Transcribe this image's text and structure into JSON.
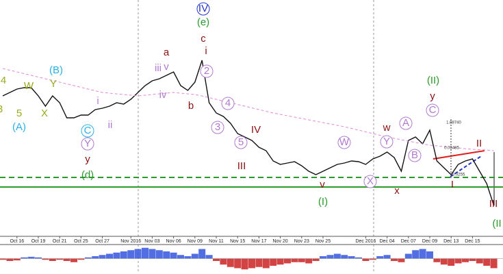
{
  "chart_data": [
    {
      "type": "line",
      "categories": [
        null,
        null,
        "Oct 16",
        null,
        null,
        "Oct 19",
        null,
        null,
        "Oct 21",
        null,
        null,
        "Oct 25",
        null,
        null,
        "Oct 27",
        null,
        null,
        null,
        "Nov 2016",
        null,
        null,
        "Nov 03",
        null,
        null,
        "Nov 06",
        null,
        null,
        "Nov 09",
        null,
        null,
        "Nov 11",
        null,
        null,
        "Nov 15",
        null,
        null,
        "Nov 17",
        null,
        null,
        "Nov 20",
        null,
        null,
        "Nov 23",
        null,
        null,
        "Nov 25",
        null,
        null,
        null,
        null,
        null,
        "Dec 2016",
        null,
        null,
        "Dec 04",
        null,
        null,
        "Dec 07",
        null,
        null,
        "Dec 09",
        null,
        null,
        "Dec 13",
        null,
        null,
        "Dec 15",
        null,
        null,
        null
      ],
      "series": [
        {
          "color": "#111111",
          "dashed": false,
          "values": [
            1.104,
            1.106,
            1.108,
            1.1088,
            1.1088,
            1.104,
            1.098,
            1.104,
            1.1,
            1.0912,
            1.0912,
            1.0928,
            1.0928,
            1.096,
            1.0968,
            1.098,
            1.1,
            1.0992,
            1.102,
            1.106,
            1.11,
            1.1128,
            1.114,
            1.116,
            1.118,
            1.11,
            1.1072,
            1.112,
            1.1248,
            1.1,
            1.094,
            1.092,
            1.088,
            1.082,
            1.08,
            1.078,
            1.074,
            1.072,
            1.066,
            1.064,
            1.0648,
            1.0656,
            1.0632,
            1.06,
            1.058,
            1.06,
            1.062,
            1.064,
            1.0648,
            1.066,
            1.0656,
            1.064,
            1.0672,
            1.0688,
            1.0712,
            1.068,
            1.06,
            1.078,
            1.08,
            1.076,
            1.084,
            1.066,
            1.062,
            1.058,
            1.064,
            1.066,
            1.0672,
            1.06,
            1.0528,
            1.04
          ]
        },
        {
          "color": "#e08ad8",
          "dashed": true,
          "values": [
            1.12,
            1.119,
            1.118,
            1.117,
            1.116,
            1.115,
            1.114,
            1.113,
            1.112,
            1.111,
            1.11,
            1.109,
            1.108,
            1.107,
            1.106,
            1.1056,
            1.1052,
            1.1048,
            1.1044,
            1.104,
            1.1044,
            1.1048,
            1.1052,
            1.1056,
            1.106,
            1.1056,
            1.1052,
            1.1048,
            1.104,
            1.103,
            1.102,
            1.101,
            1.1,
            1.099,
            1.098,
            1.097,
            1.096,
            1.095,
            1.094,
            1.0932,
            1.0924,
            1.0916,
            1.0908,
            1.09,
            1.0892,
            1.0884,
            1.0876,
            1.0868,
            1.086,
            1.085,
            1.084,
            1.083,
            1.082,
            1.081,
            1.08,
            1.0792,
            1.0784,
            1.0776,
            1.0768,
            1.076,
            1.0752,
            1.0748,
            1.0744,
            1.074,
            1.0736,
            1.0732,
            1.0728,
            1.0726,
            1.0724,
            1.072
          ]
        }
      ],
      "ylim": [
        1.022,
        1.16
      ],
      "hlines": [
        {
          "value": 1.0564,
          "color": "#2a9a2a",
          "dashed": true
        },
        {
          "value": 1.0508,
          "color": "#2a9a2a",
          "dashed": false
        }
      ],
      "annotations": [
        "4",
        "3",
        "W",
        "5",
        "X",
        "Y",
        "(A)",
        "(B)",
        "C",
        "Y",
        "y",
        "(d)",
        "i",
        "ii",
        "iii",
        "v",
        "iv",
        "a",
        "b",
        "c",
        "(e)",
        "IV",
        "2",
        "i",
        "4",
        "3",
        "IV",
        "5",
        "III",
        "W",
        "v",
        "(I)",
        "X",
        "w",
        "Y",
        "x",
        "A",
        "B",
        "C",
        "y",
        "(II)",
        "II",
        "I",
        "III",
        "(II",
        "1.08740",
        "0.03485",
        "0.0255"
      ]
    },
    {
      "type": "bar",
      "ylim": [
        -1,
        1
      ],
      "color_up": "#3355dd",
      "color_down": "#cc2222",
      "values": [
        -0.1,
        -0.2,
        -0.15,
        0.1,
        0.15,
        0.1,
        -0.1,
        -0.2,
        -0.1,
        -0.2,
        -0.3,
        -0.1,
        0.1,
        0.2,
        0.3,
        0.4,
        0.5,
        0.6,
        0.7,
        0.8,
        0.9,
        0.8,
        0.7,
        0.6,
        0.5,
        0.3,
        0.2,
        0.4,
        0.8,
        0.3,
        -0.2,
        -0.5,
        -0.7,
        -0.8,
        -0.9,
        -0.8,
        -0.7,
        -0.8,
        -0.6,
        -0.5,
        -0.4,
        -0.3,
        -0.3,
        -0.4,
        -0.2,
        0.2,
        0.3,
        0.4,
        0.3,
        0.2,
        0.1,
        -0.2,
        -0.1,
        0.2,
        0.3,
        -0.2,
        -0.3,
        0.4,
        0.7,
        0.8,
        0.6,
        -0.3,
        -0.5,
        -0.6,
        -0.4,
        -0.3,
        -0.2,
        -0.4,
        -0.6,
        -0.8
      ]
    }
  ]
}
